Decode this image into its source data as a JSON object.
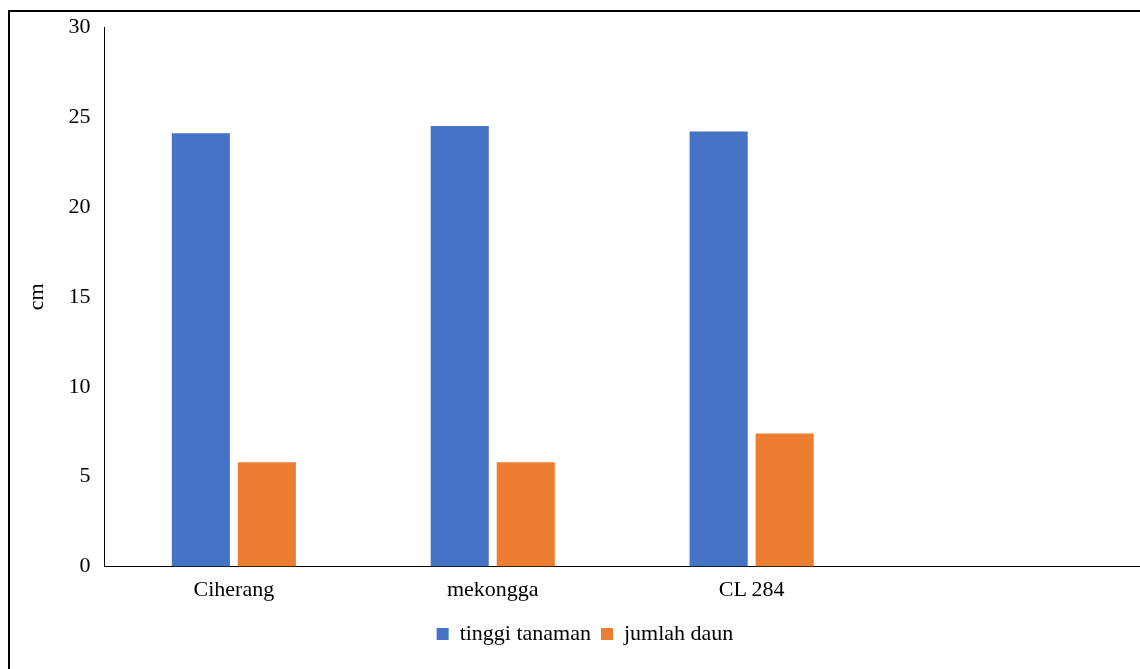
{
  "chart_data": {
    "type": "bar",
    "ylabel": "cm",
    "categories": [
      "Ciherang",
      "mekongga",
      "CL 284",
      null
    ],
    "series": [
      {
        "name": "tinggi tanaman",
        "color": "#4472c4",
        "values": [
          24.1,
          24.5,
          24.2,
          null
        ]
      },
      {
        "name": "jumlah daun",
        "color": "#ed7d31",
        "values": [
          5.8,
          5.8,
          7.4,
          null
        ]
      }
    ],
    "ylim": [
      0,
      30
    ],
    "yticks": [
      0,
      5,
      10,
      15,
      20,
      25,
      30
    ],
    "legend": "bottom"
  }
}
